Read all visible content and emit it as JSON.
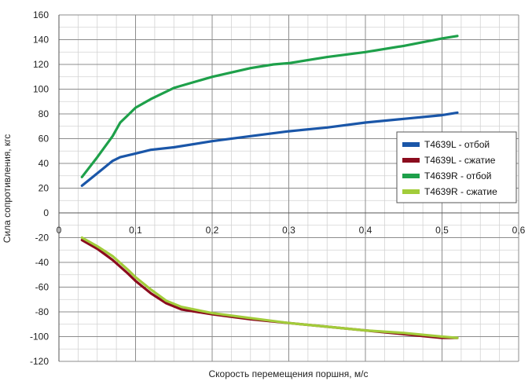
{
  "chart_data": {
    "type": "line",
    "title": "",
    "xlabel": "Скорость перемещения поршня, м/с",
    "ylabel": "Сила сопротивления, кгс",
    "xlim": [
      0,
      0.6
    ],
    "ylim": [
      -120,
      160
    ],
    "x_ticks": [
      0,
      0.1,
      0.2,
      0.3,
      0.4,
      0.5,
      0.6
    ],
    "x_tick_labels": [
      "0",
      "0,1",
      "0,2",
      "0,3",
      "0,4",
      "0,5",
      "0,6"
    ],
    "y_ticks": [
      -120,
      -100,
      -80,
      -60,
      -40,
      -20,
      0,
      20,
      40,
      60,
      80,
      100,
      120,
      140,
      160
    ],
    "grid": "on",
    "legend_position": "right",
    "series": [
      {
        "name": "T4639L - отбой",
        "color": "#1a56a8",
        "x": [
          0.03,
          0.05,
          0.07,
          0.08,
          0.1,
          0.12,
          0.15,
          0.2,
          0.25,
          0.3,
          0.35,
          0.4,
          0.45,
          0.5,
          0.52
        ],
        "y": [
          22,
          32,
          42,
          45,
          48,
          51,
          53,
          58,
          62,
          66,
          69,
          73,
          76,
          79,
          81
        ]
      },
      {
        "name": "T4639L - сжатие",
        "color": "#8b0c1e",
        "x": [
          0.03,
          0.05,
          0.07,
          0.09,
          0.1,
          0.12,
          0.14,
          0.16,
          0.2,
          0.25,
          0.3,
          0.35,
          0.4,
          0.45,
          0.5,
          0.52
        ],
        "y": [
          -22,
          -29,
          -38,
          -49,
          -55,
          -65,
          -73,
          -78,
          -82,
          -86,
          -89,
          -92,
          -95,
          -98,
          -101,
          -101
        ]
      },
      {
        "name": "T4639R - отбой",
        "color": "#1ea04a",
        "x": [
          0.03,
          0.05,
          0.07,
          0.08,
          0.09,
          0.1,
          0.12,
          0.15,
          0.2,
          0.25,
          0.28,
          0.3,
          0.35,
          0.4,
          0.45,
          0.5,
          0.52
        ],
        "y": [
          29,
          45,
          62,
          73,
          79,
          85,
          92,
          101,
          110,
          117,
          120,
          121,
          126,
          130,
          135,
          141,
          143
        ]
      },
      {
        "name": "T4639R - сжатие",
        "color": "#a2cc3a",
        "x": [
          0.03,
          0.05,
          0.07,
          0.09,
          0.1,
          0.12,
          0.14,
          0.16,
          0.2,
          0.25,
          0.3,
          0.35,
          0.4,
          0.45,
          0.5,
          0.52
        ],
        "y": [
          -20,
          -27,
          -35,
          -46,
          -52,
          -62,
          -71,
          -76,
          -81,
          -85,
          -89,
          -92,
          -95,
          -97,
          -100,
          -101
        ]
      }
    ]
  }
}
